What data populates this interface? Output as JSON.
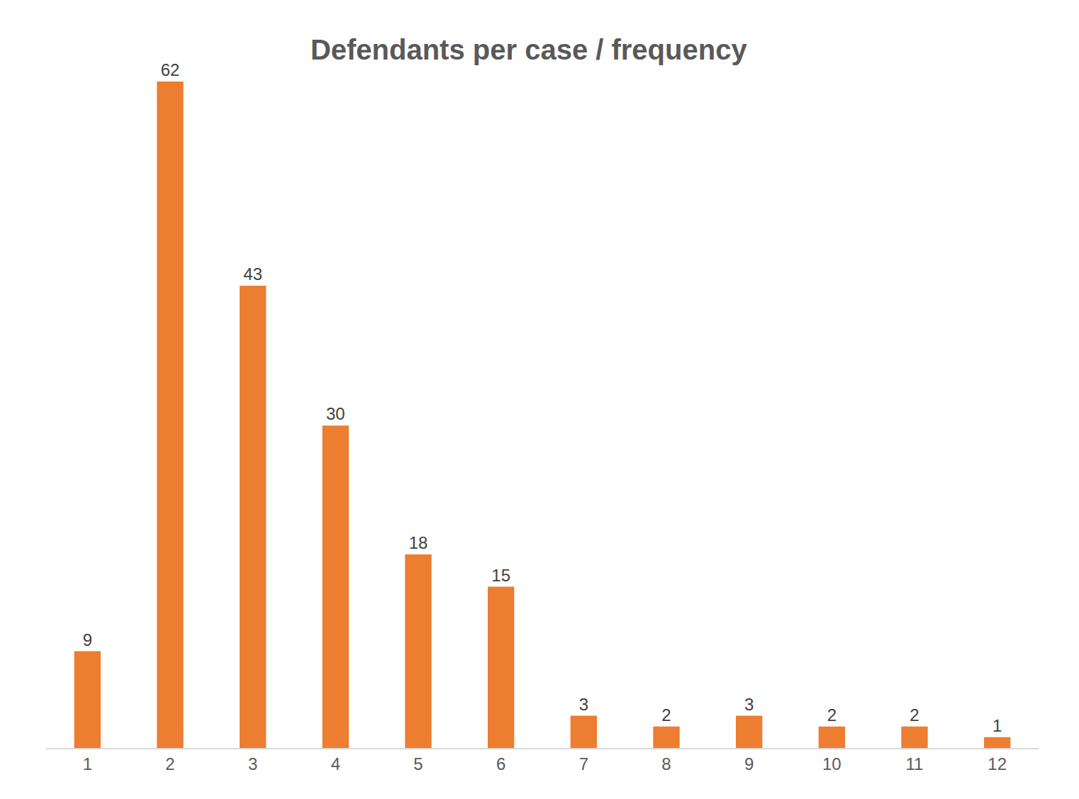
{
  "chart_data": {
    "type": "bar",
    "title": "Defendants per case / frequency",
    "categories": [
      "1",
      "2",
      "3",
      "4",
      "5",
      "6",
      "7",
      "8",
      "9",
      "10",
      "11",
      "12"
    ],
    "values": [
      9,
      62,
      43,
      30,
      18,
      15,
      3,
      2,
      3,
      2,
      2,
      1
    ],
    "color": "#ed7d31",
    "ylim": [
      0,
      62
    ],
    "grid": false,
    "data_labels": true,
    "tick_labels": "x"
  }
}
